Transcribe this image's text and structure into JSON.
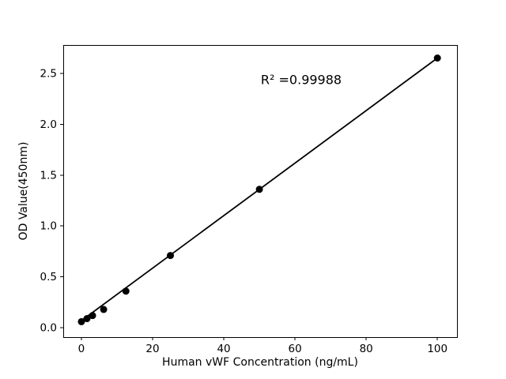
{
  "figure": {
    "background": "#ffffff"
  },
  "chart_data": {
    "type": "scatter",
    "title": "",
    "xlabel": "Human vWF Concentration (ng/mL)",
    "ylabel": "OD Value(450nm)",
    "annotation": "R² =0.99988",
    "x": [
      0,
      1.5625,
      3.125,
      6.25,
      12.5,
      25,
      50,
      100
    ],
    "y": [
      0.06,
      0.09,
      0.12,
      0.18,
      0.36,
      0.71,
      1.36,
      2.65
    ],
    "trendline": {
      "x": [
        0,
        100
      ],
      "y": [
        0.07,
        2.65
      ]
    },
    "xticks": [
      0,
      20,
      40,
      60,
      80,
      100
    ],
    "yticks": [
      0.0,
      0.5,
      1.0,
      1.5,
      2.0,
      2.5
    ],
    "xlim": [
      -5.1,
      105.5
    ],
    "ylim": [
      -0.092,
      2.778
    ],
    "grid": false,
    "legend": "none",
    "marker_color": "#000000",
    "line_color": "#000000",
    "frame_color": "#000000"
  }
}
